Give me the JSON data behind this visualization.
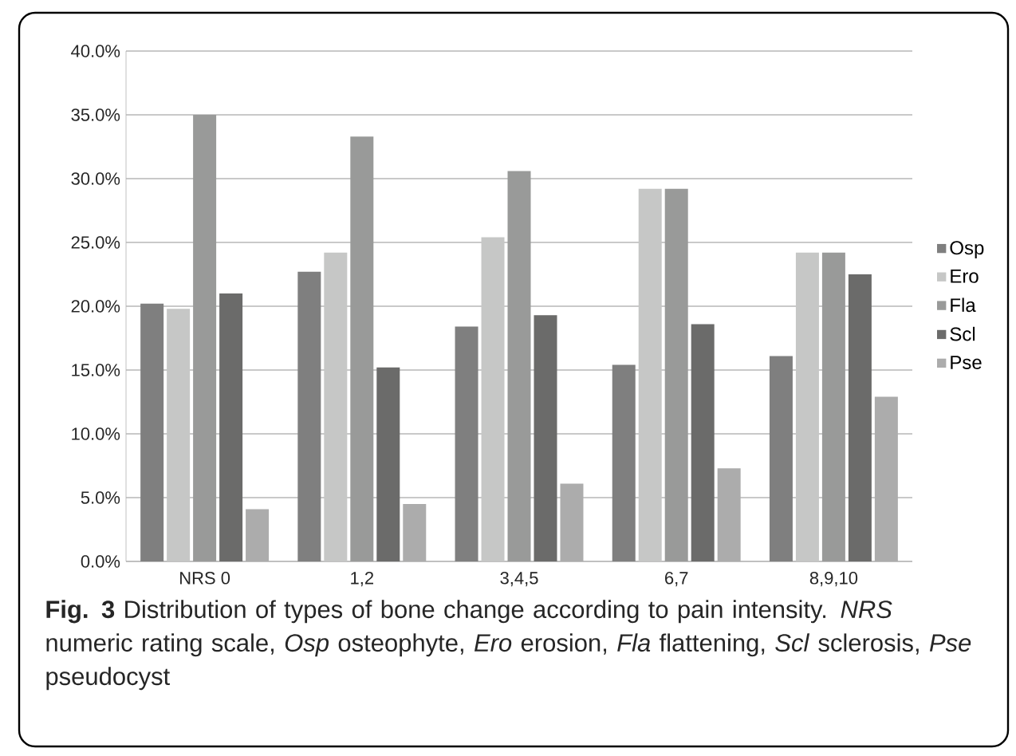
{
  "chart_data": {
    "type": "bar",
    "categories": [
      "NRS 0",
      "1,2",
      "3,4,5",
      "6,7",
      "8,9,10"
    ],
    "series": [
      {
        "name": "Osp",
        "color": "#7f7f7f",
        "values": [
          20.2,
          22.7,
          18.4,
          15.4,
          16.1
        ]
      },
      {
        "name": "Ero",
        "color": "#c6c7c6",
        "values": [
          19.8,
          24.2,
          25.4,
          29.2,
          24.2
        ]
      },
      {
        "name": "Fla",
        "color": "#999a99",
        "values": [
          35.0,
          33.3,
          30.6,
          29.2,
          24.2
        ]
      },
      {
        "name": "Scl",
        "color": "#6b6b6a",
        "values": [
          21.0,
          15.2,
          19.3,
          18.6,
          22.5
        ]
      },
      {
        "name": "Pse",
        "color": "#acacac",
        "values": [
          4.1,
          4.5,
          6.1,
          7.3,
          12.9
        ]
      }
    ],
    "ylim": [
      0,
      40
    ],
    "yticks": [
      {
        "value": 0,
        "label": "0.0%"
      },
      {
        "value": 5,
        "label": "5.0%"
      },
      {
        "value": 10,
        "label": "10.0%"
      },
      {
        "value": 15,
        "label": "15.0%"
      },
      {
        "value": 20,
        "label": "20.0%"
      },
      {
        "value": 25,
        "label": "25.0%"
      },
      {
        "value": 30,
        "label": "30.0%"
      },
      {
        "value": 35,
        "label": "35.0%"
      },
      {
        "value": 40,
        "label": "40.0%"
      }
    ],
    "grid": "y",
    "legend": "right",
    "annotations": [
      "**Fig. 3** Distribution of types of bone change according to pain intensity. *NRS* numeric rating scale, *Osp* osteophyte, *Ero* erosion, *Fla* flattening, *Scl* sclerosis, *Pse* pseudocyst"
    ]
  }
}
